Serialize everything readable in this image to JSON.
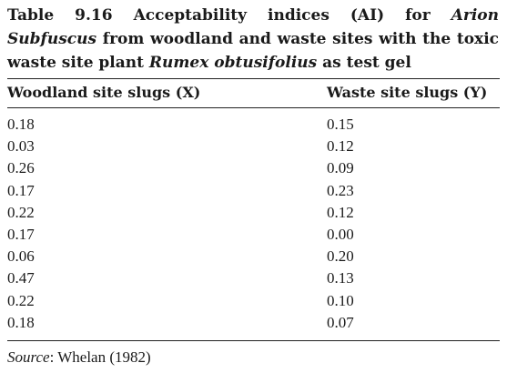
{
  "caption": {
    "line1_a": "Table 9.16 Acceptability indices (AI) for ",
    "line1_b": "Arion",
    "line2_a": "Subfuscus",
    "line2_b": " from woodland and waste sites with the toxic",
    "line3_a": "waste site plant ",
    "line3_b": "Rumex obtusifolius",
    "line3_c": " as test gel"
  },
  "table": {
    "headers": [
      "Woodland site slugs (X)",
      "Waste site slugs (Y)"
    ],
    "rows": [
      [
        "0.18",
        "0.15"
      ],
      [
        "0.03",
        "0.12"
      ],
      [
        "0.26",
        "0.09"
      ],
      [
        "0.17",
        "0.23"
      ],
      [
        "0.22",
        "0.12"
      ],
      [
        "0.17",
        "0.00"
      ],
      [
        "0.06",
        "0.20"
      ],
      [
        "0.47",
        "0.13"
      ],
      [
        "0.22",
        "0.10"
      ],
      [
        "0.18",
        "0.07"
      ]
    ]
  },
  "source": {
    "label": "Source",
    "text": ": Whelan (1982)"
  }
}
